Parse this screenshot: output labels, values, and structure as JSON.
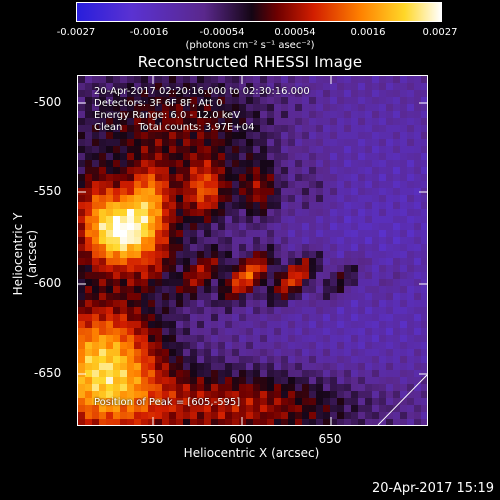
{
  "colorbar": {
    "ticks": [
      "-0.0027",
      "-0.0016",
      "-0.00054",
      "0.00054",
      "0.0016",
      "0.0027"
    ],
    "unit": "(photons cm⁻² s⁻¹ asec⁻²)"
  },
  "image": {
    "title": "Reconstructed RHESSI Image",
    "annotation": {
      "time": "20-Apr-2017 02:20:16.000 to 02:30:16.000",
      "detectors": "Detectors: 3F 6F 8F, Att 0",
      "energy": "Energy Range: 6.0 - 12.0 keV",
      "clean": "Clean     Total counts: 3.97E+04",
      "peak": "Position of Peak = [605,-595]"
    }
  },
  "axes": {
    "xlabel": "Heliocentric X (arcsec)",
    "ylabel": "Heliocentric Y (arcsec)",
    "xticks": [
      "550",
      "600",
      "650"
    ],
    "yticks": [
      "-500",
      "-550",
      "-600",
      "-650"
    ]
  },
  "footer": {
    "timestamp": "20-Apr-2017 15:19"
  }
}
